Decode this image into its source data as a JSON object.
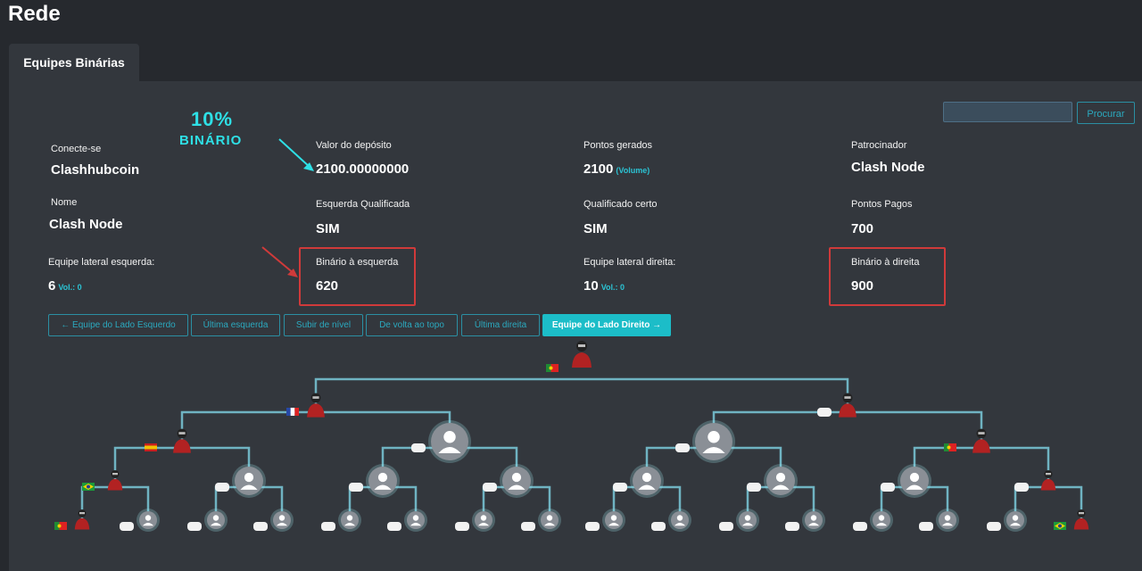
{
  "page": {
    "title": "Rede"
  },
  "tabs": [
    {
      "label": "Equipes Binárias"
    }
  ],
  "search": {
    "placeholder": "",
    "button_label": "Procurar"
  },
  "annotation": {
    "line1": "10%",
    "line2": "BINÁRIO"
  },
  "info": {
    "login": {
      "label": "Conecte-se",
      "value": "Clashhubcoin"
    },
    "deposit": {
      "label": "Valor do depósito",
      "value": "2100.00000000"
    },
    "points_generated": {
      "label": "Pontos gerados",
      "value": "2100",
      "suffix": "(Volume)"
    },
    "sponsor": {
      "label": "Patrocinador",
      "value": "Clash Node"
    },
    "name": {
      "label": "Nome",
      "value": "Clash Node"
    },
    "left_qualified": {
      "label": "Esquerda Qualificada",
      "value": "SIM"
    },
    "right_qualified": {
      "label": "Qualificado certo",
      "value": "SIM"
    },
    "points_paid": {
      "label": "Pontos Pagos",
      "value": "700"
    },
    "left_team": {
      "label": "Equipe lateral esquerda:",
      "value": "6",
      "vol": "Vol.: 0"
    },
    "left_binary": {
      "label": "Binário à esquerda",
      "value": "620"
    },
    "right_team": {
      "label": "Equipe lateral direita:",
      "value": "10",
      "vol": "Vol.: 0"
    },
    "right_binary": {
      "label": "Binário à direita",
      "value": "900"
    }
  },
  "nav_buttons": {
    "left_team": "← Equipe do Lado Esquerdo",
    "last_left": "Última esquerda",
    "level_up": "Subir de nível",
    "back_top": "De volta ao topo",
    "last_right": "Última direita",
    "right_team": "Equipe do Lado Direito →"
  },
  "colors": {
    "accent": "#1cbdc8",
    "highlight_box": "#d03a3a",
    "tree_line": "#6fb3c2",
    "background": "#26292e",
    "panel": "#33373d"
  },
  "tree": {
    "levels": 6,
    "icons": [
      "member-avatar-icon",
      "empty-slot-icon",
      "flag-icon"
    ]
  }
}
